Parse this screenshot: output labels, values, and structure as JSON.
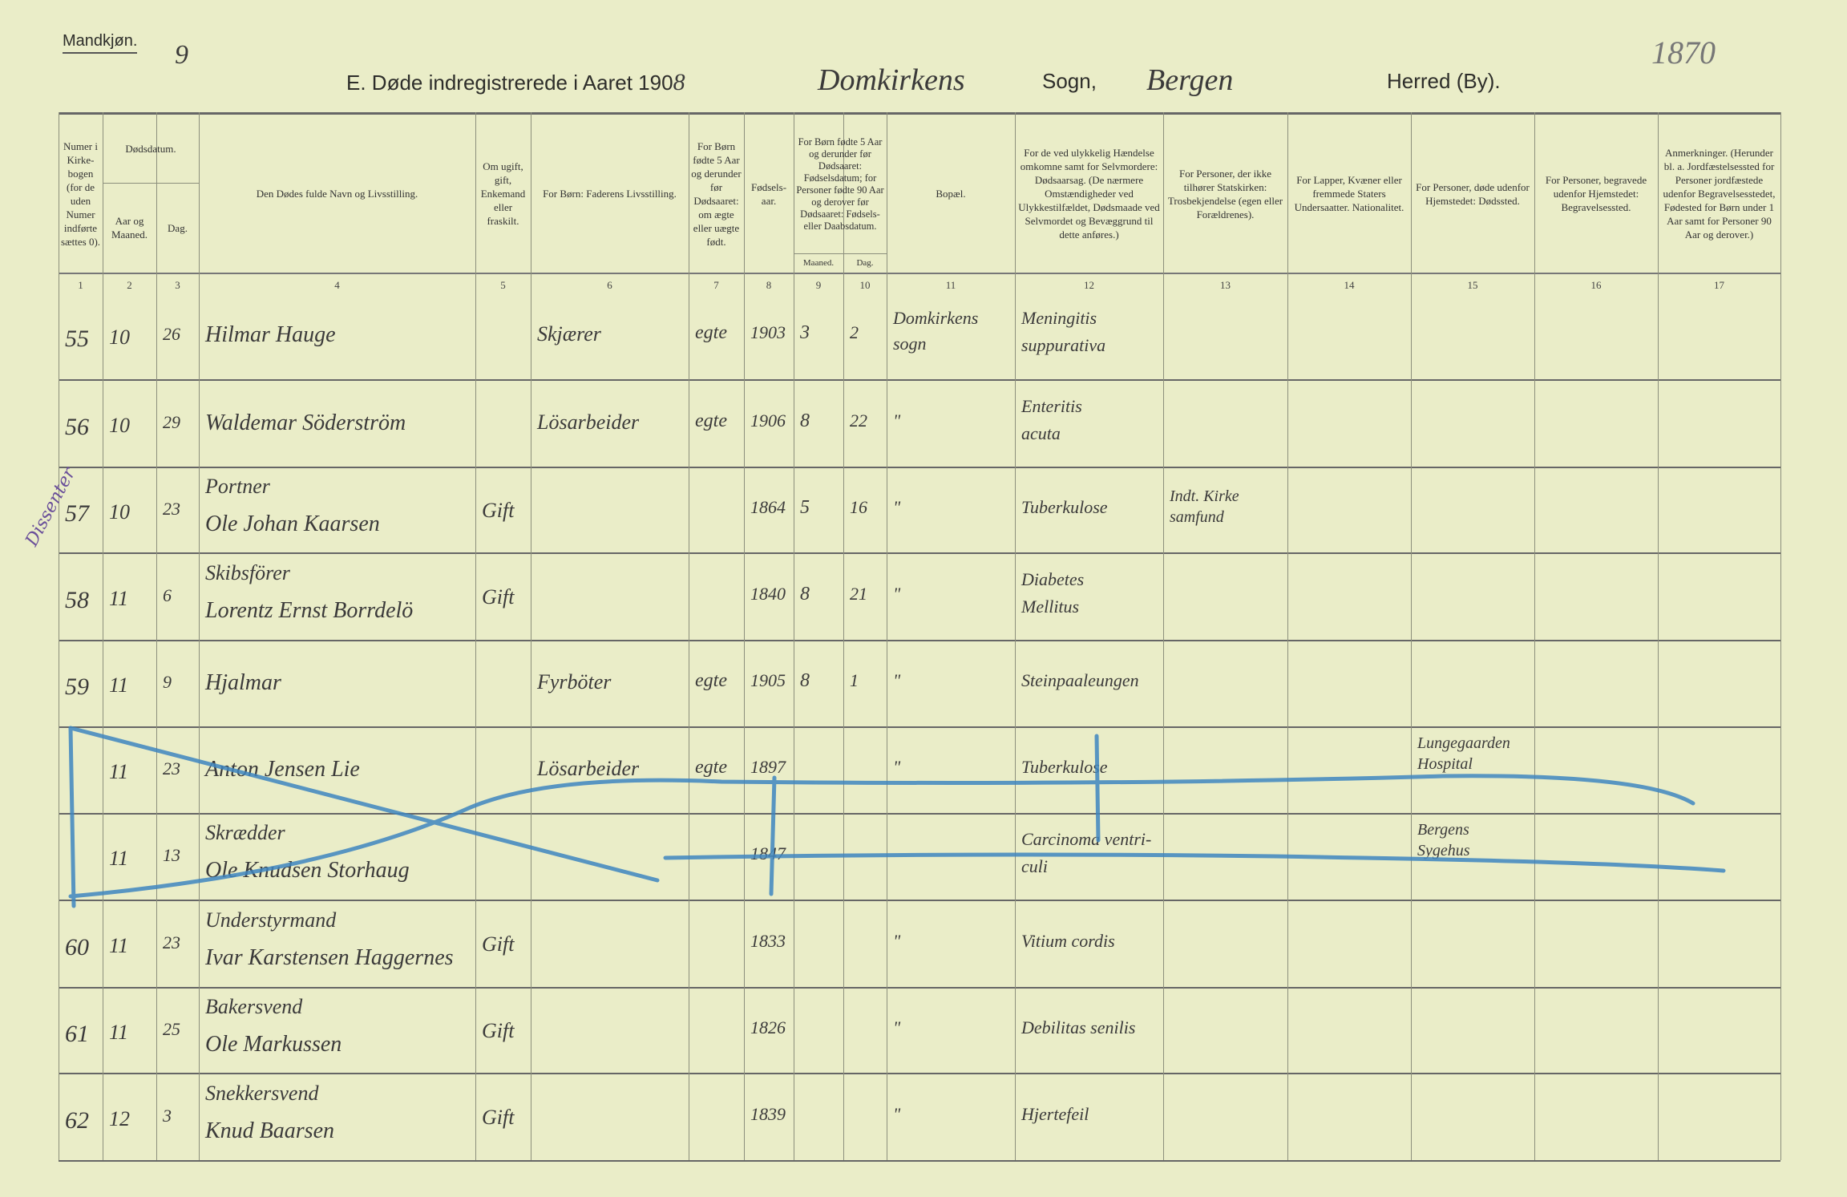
{
  "top": {
    "gender_label": "Mandkjøn.",
    "sheet_no": "9",
    "title": "E.  Døde indregistrerede i Aaret 190",
    "year_digit": "8",
    "parish": "Domkirkens",
    "sogn_label": "Sogn,",
    "herred": "Bergen",
    "herred_label": "Herred (By).",
    "corner_no": "1870"
  },
  "headers": [
    "Numer i Kirke-bogen (for de uden Numer indførte sættes 0).",
    "Aar og Maaned.",
    "Dag.",
    "Den Dødes fulde Navn og Livsstilling.",
    "Om ugift, gift, Enkemand eller fraskilt.",
    "For Børn: Faderens Livsstilling.",
    "For Børn fødte 5 Aar og derunder før Dødsaaret: om ægte eller uægte født.",
    "Fødsels-aar.",
    "Maaned.",
    "Dag.",
    "Bopæl.",
    "For de ved ulykkelig Hændelse omkomne samt for Selvmordere: Dødsaarsag. (De nærmere Omstændigheder ved Ulykkestilfældet, Dødsmaade ved Selvmordet og Bevæggrund til dette anføres.)",
    "For Personer, der ikke tilhører Statskirken: Trosbekjendelse (egen eller Forældrenes).",
    "For Lapper, Kvæner eller fremmede Staters Undersaatter. Nationalitet.",
    "For Personer, døde udenfor Hjemstedet: Dødssted.",
    "For Personer, begravede udenfor Hjemstedet: Begravelsessted.",
    "Anmerkninger. (Herunder bl. a. Jordfæstelsessted for Personer jordfæstede udenfor Begravelsesstedet, Fødested for Børn under 1 Aar samt for Personer 90 Aar og derover.)"
  ],
  "group_headers": {
    "dodsdatum": "Dødsdatum.",
    "born5": "For Børn fødte 5 Aar og derunder før Dødsaaret: Fødselsdatum; for Personer fødte 90 Aar og derover før Dødsaaret: Fødsels- eller Daabsdatum."
  },
  "col_numbers": [
    "1",
    "2",
    "3",
    "4",
    "5",
    "6",
    "7",
    "8",
    "9",
    "10",
    "11",
    "12",
    "13",
    "14",
    "15",
    "16",
    "17"
  ],
  "margin_note": "Dissenter",
  "rows": [
    {
      "no": "55",
      "month": "10",
      "day": "26",
      "name1": "",
      "name2": "Hilmar Hauge",
      "civil": "",
      "father": "Skjærer",
      "legit": "egte",
      "year": "1903",
      "bm": "3",
      "bd": "2",
      "bopael1": "Domkirkens",
      "bopael2": "sogn",
      "cause1": "Meningitis",
      "cause2": "suppurativa",
      "faith1": "",
      "faith2": "",
      "place15a": "",
      "place15b": "",
      "crossed": false
    },
    {
      "no": "56",
      "month": "10",
      "day": "29",
      "name1": "",
      "name2": "Waldemar Söderström",
      "civil": "",
      "father": "Lösarbeider",
      "legit": "egte",
      "year": "1906",
      "bm": "8",
      "bd": "22",
      "bopael1": "\"",
      "bopael2": "",
      "cause1": "Enteritis",
      "cause2": "acuta",
      "faith1": "",
      "faith2": "",
      "place15a": "",
      "place15b": "",
      "crossed": false
    },
    {
      "no": "57",
      "month": "10",
      "day": "23",
      "name1": "Portner",
      "name2": "Ole Johan Kaarsen",
      "civil": "Gift",
      "father": "",
      "legit": "",
      "year": "1864",
      "bm": "5",
      "bd": "16",
      "bopael1": "\"",
      "bopael2": "",
      "cause1": "Tuberkulose",
      "cause2": "",
      "faith1": "Indt. Kirke",
      "faith2": "samfund",
      "place15a": "",
      "place15b": "",
      "crossed": false
    },
    {
      "no": "58",
      "month": "11",
      "day": "6",
      "name1": "Skibsförer",
      "name2": "Lorentz Ernst Borrdelö",
      "civil": "Gift",
      "father": "",
      "legit": "",
      "year": "1840",
      "bm": "8",
      "bd": "21",
      "bopael1": "\"",
      "bopael2": "",
      "cause1": "Diabetes",
      "cause2": "Mellitus",
      "faith1": "",
      "faith2": "",
      "place15a": "",
      "place15b": "",
      "crossed": false
    },
    {
      "no": "59",
      "month": "11",
      "day": "9",
      "name1": "",
      "name2": "Hjalmar",
      "civil": "",
      "father": "Fyrböter",
      "legit": "egte",
      "year": "1905",
      "bm": "8",
      "bd": "1",
      "bopael1": "\"",
      "bopael2": "",
      "cause1": "Steinpaaleungen",
      "cause2": "",
      "faith1": "",
      "faith2": "",
      "place15a": "",
      "place15b": "",
      "crossed": false
    },
    {
      "no": "",
      "month": "11",
      "day": "23",
      "name1": "",
      "name2": "Anton Jensen Lie",
      "civil": "",
      "father": "Lösarbeider",
      "legit": "egte",
      "year": "1897",
      "bm": "",
      "bd": "",
      "bopael1": "\"",
      "bopael2": "",
      "cause1": "Tuberkulose",
      "cause2": "",
      "faith1": "",
      "faith2": "",
      "place15a": "Lungegaarden",
      "place15b": "Hospital",
      "crossed": true
    },
    {
      "no": "",
      "month": "11",
      "day": "13",
      "name1": "Skrædder",
      "name2": "Ole Knudsen Storhaug",
      "civil": "",
      "father": "",
      "legit": "",
      "year": "1847",
      "bm": "",
      "bd": "",
      "bopael1": "",
      "bopael2": "",
      "cause1": "Carcinoma ventri-",
      "cause2": "culi",
      "faith1": "",
      "faith2": "",
      "place15a": "Bergens",
      "place15b": "Sygehus",
      "crossed": true
    },
    {
      "no": "60",
      "month": "11",
      "day": "23",
      "name1": "Understyrmand",
      "name2": "Ivar Karstensen Haggernes",
      "civil": "Gift",
      "father": "",
      "legit": "",
      "year": "1833",
      "bm": "",
      "bd": "",
      "bopael1": "\"",
      "bopael2": "",
      "cause1": "Vitium cordis",
      "cause2": "",
      "faith1": "",
      "faith2": "",
      "place15a": "",
      "place15b": "",
      "crossed": false
    },
    {
      "no": "61",
      "month": "11",
      "day": "25",
      "name1": "Bakersvend",
      "name2": "Ole Markussen",
      "civil": "Gift",
      "father": "",
      "legit": "",
      "year": "1826",
      "bm": "",
      "bd": "",
      "bopael1": "\"",
      "bopael2": "",
      "cause1": "Debilitas senilis",
      "cause2": "",
      "faith1": "",
      "faith2": "",
      "place15a": "",
      "place15b": "",
      "crossed": false
    },
    {
      "no": "62",
      "month": "12",
      "day": "3",
      "name1": "Snekkersvend",
      "name2": "Knud Baarsen",
      "civil": "Gift",
      "father": "",
      "legit": "",
      "year": "1839",
      "bm": "",
      "bd": "",
      "bopael1": "\"",
      "bopael2": "",
      "cause1": "Hjertefeil",
      "cause2": "",
      "faith1": "",
      "faith2": "",
      "place15a": "",
      "place15b": "",
      "crossed": false
    }
  ],
  "colors": {
    "paper": "#eaedc8",
    "ink": "#3b3a3a",
    "crossout_blue": "#3f86c0",
    "margin_purple": "#6a4f9a"
  }
}
